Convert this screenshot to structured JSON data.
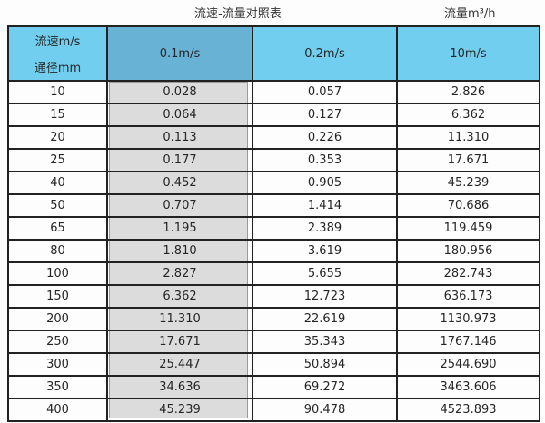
{
  "titles": {
    "left": "流速-流量对照表",
    "right": "流量m³/h"
  },
  "table": {
    "corner": {
      "top": "流速m/s",
      "bottom": "通径mm"
    },
    "columns": [
      "0.1m/s",
      "0.2m/s",
      "10m/s"
    ],
    "rows": [
      {
        "diameter": "10",
        "values": [
          "0.028",
          "0.057",
          "2.826"
        ]
      },
      {
        "diameter": "15",
        "values": [
          "0.064",
          "0.127",
          "6.362"
        ]
      },
      {
        "diameter": "20",
        "values": [
          "0.113",
          "0.226",
          "11.310"
        ]
      },
      {
        "diameter": "25",
        "values": [
          "0.177",
          "0.353",
          "17.671"
        ]
      },
      {
        "diameter": "40",
        "values": [
          "0.452",
          "0.905",
          "45.239"
        ]
      },
      {
        "diameter": "50",
        "values": [
          "0.707",
          "1.414",
          "70.686"
        ]
      },
      {
        "diameter": "65",
        "values": [
          "1.195",
          "2.389",
          "119.459"
        ]
      },
      {
        "diameter": "80",
        "values": [
          "1.810",
          "3.619",
          "180.956"
        ]
      },
      {
        "diameter": "100",
        "values": [
          "2.827",
          "5.655",
          "282.743"
        ]
      },
      {
        "diameter": "150",
        "values": [
          "6.362",
          "12.723",
          "636.173"
        ]
      },
      {
        "diameter": "200",
        "values": [
          "11.310",
          "22.619",
          "1130.973"
        ]
      },
      {
        "diameter": "250",
        "values": [
          "17.671",
          "35.343",
          "1767.146"
        ]
      },
      {
        "diameter": "300",
        "values": [
          "25.447",
          "50.894",
          "2544.690"
        ]
      },
      {
        "diameter": "350",
        "values": [
          "34.636",
          "69.272",
          "3463.606"
        ]
      },
      {
        "diameter": "400",
        "values": [
          "45.239",
          "90.478",
          "4523.893"
        ]
      }
    ]
  },
  "chart_data": {
    "type": "table",
    "title": "流速-流量对照表",
    "unit_label": "流量m³/h",
    "row_header_label": "通径mm",
    "column_header_label": "流速m/s",
    "columns": [
      "0.1m/s",
      "0.2m/s",
      "10m/s"
    ],
    "diameters_mm": [
      10,
      15,
      20,
      25,
      40,
      50,
      65,
      80,
      100,
      150,
      200,
      250,
      300,
      350,
      400
    ],
    "series": [
      {
        "name": "0.1m/s",
        "values": [
          0.028,
          0.064,
          0.113,
          0.177,
          0.452,
          0.707,
          1.195,
          1.81,
          2.827,
          6.362,
          11.31,
          17.671,
          25.447,
          34.636,
          45.239
        ]
      },
      {
        "name": "0.2m/s",
        "values": [
          0.057,
          0.127,
          0.226,
          0.353,
          0.905,
          1.414,
          2.389,
          3.619,
          5.655,
          12.723,
          22.619,
          35.343,
          50.894,
          69.272,
          90.478
        ]
      },
      {
        "name": "10m/s",
        "values": [
          2.826,
          6.362,
          11.31,
          17.671,
          45.239,
          70.686,
          119.459,
          180.956,
          282.743,
          636.173,
          1130.973,
          1767.146,
          2544.69,
          3463.606,
          4523.893
        ]
      }
    ]
  },
  "colors": {
    "header_light_blue": "#71ceef",
    "header_steel_blue": "#68b2d6",
    "highlight_column_grey": "#dcdcdc",
    "highlight_column_outline": "#9b9b9b",
    "table_border": "#222222",
    "text": "#262626"
  }
}
